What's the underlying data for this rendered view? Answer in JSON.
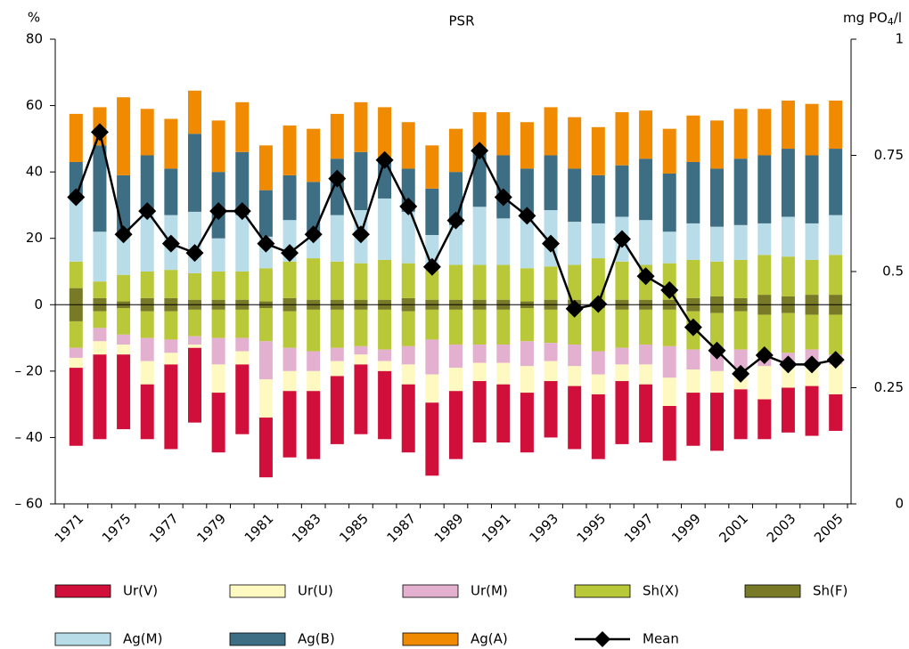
{
  "chart_data": {
    "type": "bar",
    "title": "PSR",
    "y_label": "%",
    "y2_label": {
      "text": "mg PO",
      "sub": "4",
      "tail": "/l"
    },
    "categories": [
      "1971",
      null,
      "1975",
      null,
      "1977",
      null,
      "1979",
      null,
      "1981",
      null,
      "1983",
      null,
      "1985",
      null,
      "1987",
      null,
      "1989",
      null,
      "1991",
      null,
      "1993",
      null,
      "1995",
      null,
      "1997",
      null,
      "1999",
      null,
      "2001",
      null,
      "2003",
      null,
      "2005"
    ],
    "ylim": [
      -60,
      80
    ],
    "yticks": [
      {
        "value": -60,
        "label": "– 60"
      },
      {
        "value": -40,
        "label": "– 40"
      },
      {
        "value": -20,
        "label": "– 20"
      },
      0,
      20,
      40,
      60,
      80
    ],
    "y2lim": [
      0,
      1
    ],
    "y2ticks": [
      0,
      0.25,
      0.5,
      0.75,
      1
    ],
    "series": [
      {
        "name": "Ur(V)",
        "color": "#d0103a",
        "values": [
          -23.5,
          -25.5,
          -22.5,
          -16.5,
          -25.5,
          -22.5,
          -18,
          -21,
          -18,
          -20,
          -20.5,
          -20.5,
          -21,
          -20.5,
          -20.5,
          -22,
          -20.5,
          -18.5,
          -17.5,
          -18,
          -17,
          -19,
          -19.5,
          -19,
          -17.5,
          -16.5,
          -16,
          -17.5,
          -15,
          -12,
          -13.5,
          -15,
          -11
        ]
      },
      {
        "name": "Ur(U)",
        "color": "#fdf9c0",
        "values": [
          -3,
          -4,
          -3,
          -7,
          -3.5,
          -1,
          -8.5,
          -4,
          -11.5,
          -6,
          -6,
          -4.5,
          -3,
          -3,
          -6,
          -8.5,
          -7,
          -5.5,
          -6.5,
          -8,
          -6,
          -6,
          -6,
          -5,
          -6,
          -8.5,
          -7,
          -6.5,
          -6,
          -10,
          -6.5,
          -6.5,
          -9
        ]
      },
      {
        "name": "Ur(M)",
        "color": "#e4b0d0",
        "values": [
          -3,
          -4,
          -3,
          -7,
          -4,
          -2.5,
          -8,
          -4,
          -11.5,
          -7,
          -6,
          -4,
          -2.5,
          -3.5,
          -5.5,
          -10.5,
          -7,
          -5.5,
          -5.5,
          -7.5,
          -5.5,
          -6.5,
          -7,
          -5,
          -6,
          -9.5,
          -6,
          -7,
          -6,
          -3.5,
          -4,
          -4.5,
          -3
        ]
      },
      {
        "name": "Sh(X)",
        "color": "#b8c838",
        "stack": "centered",
        "values": [
          16,
          10,
          16,
          16,
          17,
          16,
          17,
          17,
          20,
          22,
          25,
          23,
          22,
          24,
          21,
          18,
          21,
          21,
          21,
          20,
          20,
          21,
          26,
          23,
          21,
          22,
          23,
          21,
          23,
          24,
          24,
          21,
          24
        ]
      },
      {
        "name": "Sh(F)",
        "color": "#787a28",
        "stack": "centered",
        "values": [
          10,
          4,
          2,
          4,
          4,
          3,
          3,
          3,
          2,
          4,
          3,
          3,
          3,
          3,
          4,
          3,
          3,
          3,
          3,
          2,
          3,
          3,
          2,
          3,
          3,
          3,
          4,
          5,
          4,
          6,
          5,
          6,
          6
        ]
      },
      {
        "name": "Ag(M)",
        "color": "#b8dce8",
        "values": [
          20,
          15,
          13,
          18,
          16.5,
          18.5,
          10,
          17,
          9.5,
          12.5,
          7,
          14,
          16,
          18.5,
          15.5,
          10.5,
          12,
          17.5,
          14,
          15,
          17,
          13,
          10.5,
          13.5,
          13.5,
          9.5,
          11,
          10.5,
          10.5,
          9.5,
          12,
          11,
          12
        ]
      },
      {
        "name": "Ag(B)",
        "color": "#3e6e84",
        "values": [
          10,
          26,
          17,
          17,
          14,
          23.5,
          20,
          19,
          14,
          13.5,
          16,
          17,
          17.5,
          12,
          13,
          14,
          16,
          17.5,
          19,
          15,
          16.5,
          16,
          14.5,
          15.5,
          18.5,
          17.5,
          18.5,
          17.5,
          20,
          20.5,
          20.5,
          20.5,
          20
        ]
      },
      {
        "name": "Ag(A)",
        "color": "#f08a00",
        "values": [
          14.5,
          11.5,
          23.5,
          14,
          15,
          13,
          15.5,
          15,
          13.5,
          15,
          16,
          13.5,
          15,
          15.5,
          14,
          13,
          13,
          11,
          13,
          14,
          14.5,
          15.5,
          14.5,
          16,
          14.5,
          13.5,
          14,
          14.5,
          15,
          14,
          14.5,
          15.5,
          14.5
        ]
      },
      {
        "name": "Mean",
        "color": "#000000",
        "type": "line",
        "axis": "y2",
        "values": [
          0.66,
          0.8,
          0.58,
          0.63,
          0.56,
          0.54,
          0.63,
          0.63,
          0.56,
          0.54,
          0.58,
          0.7,
          0.58,
          0.74,
          0.64,
          0.51,
          0.61,
          0.76,
          0.66,
          0.62,
          0.56,
          0.42,
          0.43,
          0.57,
          0.49,
          0.46,
          0.38,
          0.33,
          0.28,
          0.32,
          0.3,
          0.3,
          0.31
        ]
      }
    ]
  }
}
